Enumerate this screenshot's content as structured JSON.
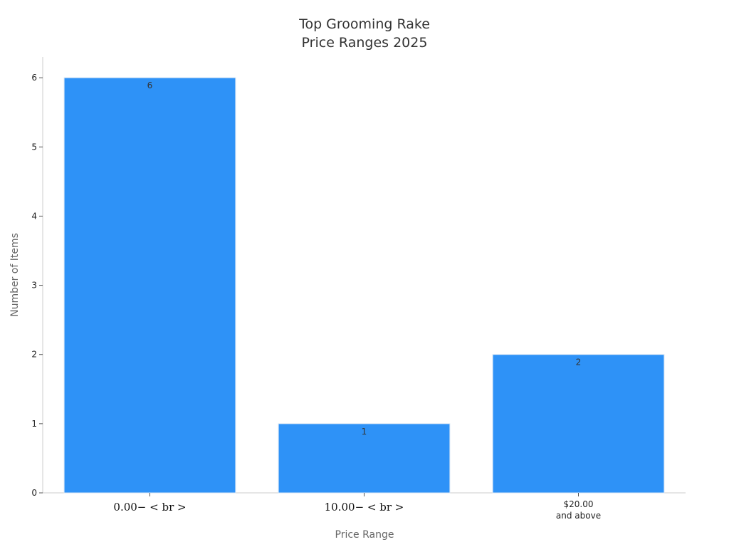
{
  "chart_data": {
    "type": "bar",
    "title": [
      "Top Grooming Rake",
      "Price Ranges 2025"
    ],
    "xlabel": "Price Range",
    "ylabel": "Number of Items",
    "categories": [
      {
        "lines": [
          "0.00− < br >"
        ],
        "math": true
      },
      {
        "lines": [
          "10.00− < br >"
        ],
        "math": true
      },
      {
        "lines": [
          "$20.00",
          "and above"
        ],
        "math": false
      }
    ],
    "values": [
      6,
      1,
      2
    ],
    "data_labels": [
      "6",
      "1",
      "2"
    ],
    "yticks": [
      0,
      1,
      2,
      3,
      4,
      5,
      6
    ],
    "ylim": [
      0,
      6.3
    ],
    "grid": false,
    "legend": "none",
    "colors": {
      "bar": "#2e92f7",
      "bar_edge": "#d8e6f5",
      "axis": "#cccccc"
    }
  }
}
